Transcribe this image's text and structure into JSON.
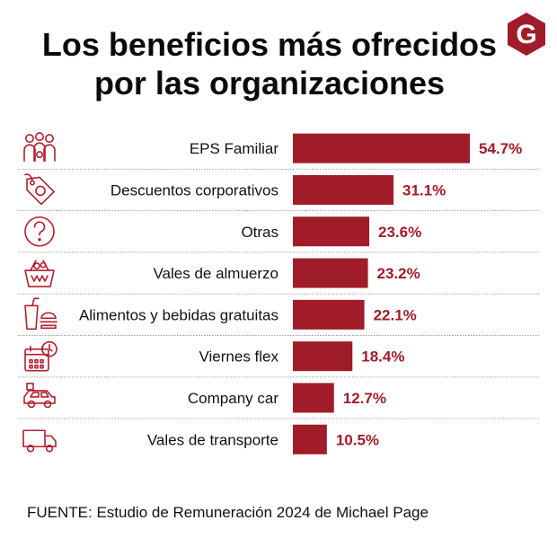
{
  "title_lines": [
    "Los beneficios más ofrecidos",
    "por las organizaciones"
  ],
  "logo_letter": "G",
  "source": "FUENTE: Estudio de Remuneración 2024 de Michael Page",
  "colors": {
    "bar": "#a11c29",
    "value_text": "#a11c29",
    "icon_stroke": "#b0202e",
    "divider": "#9a9a9a",
    "logo_bg": "#a11c29",
    "logo_fg": "#ffffff"
  },
  "chart_data": {
    "type": "bar",
    "orientation": "horizontal",
    "title": "Los beneficios más ofrecidos por las organizaciones",
    "categories": [
      "EPS Familiar",
      "Descuentos corporativos",
      "Otras",
      "Vales de almuerzo",
      "Alimentos y bebidas gratuitas",
      "Viernes flex",
      "Company car",
      "Vales de transporte"
    ],
    "values": [
      54.7,
      31.1,
      23.6,
      23.2,
      22.1,
      18.4,
      12.7,
      10.5
    ],
    "value_labels": [
      "54.7%",
      "31.1%",
      "23.6%",
      "23.2%",
      "22.1%",
      "18.4%",
      "12.7%",
      "10.5%"
    ],
    "icons": [
      "family-group-icon",
      "discount-tag-icon",
      "question-circle-icon",
      "lunch-basket-icon",
      "food-drink-icon",
      "calendar-clock-icon",
      "car-icon",
      "transport-truck-icon"
    ],
    "xlim": [
      0,
      54.7
    ],
    "xlabel": "",
    "ylabel": "",
    "grid": false,
    "legend": "none"
  }
}
